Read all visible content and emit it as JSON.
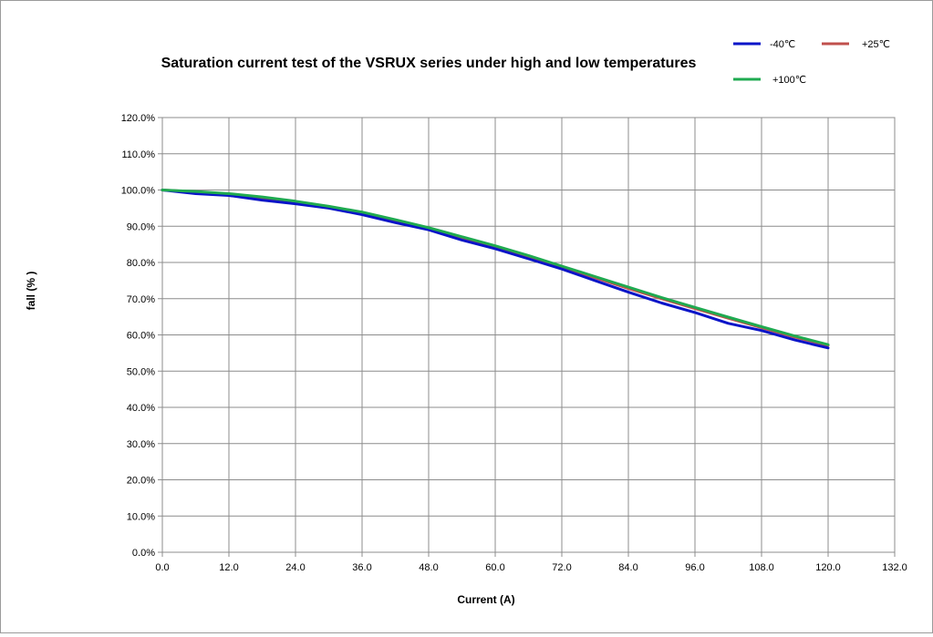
{
  "chart_data": {
    "type": "line",
    "title": "Saturation current test of the VSRUX series under high and low temperatures",
    "xlabel": "Current  (A)",
    "ylabel": "fall (% )",
    "xlim": [
      0,
      132
    ],
    "ylim": [
      0,
      120
    ],
    "x_ticks": [
      0,
      12,
      24,
      36,
      48,
      60,
      72,
      84,
      96,
      108,
      120,
      132
    ],
    "x_tick_labels": [
      "0.0",
      "12.0",
      "24.0",
      "36.0",
      "48.0",
      "60.0",
      "72.0",
      "84.0",
      "96.0",
      "108.0",
      "120.0",
      "132.0"
    ],
    "y_ticks": [
      0,
      10,
      20,
      30,
      40,
      50,
      60,
      70,
      80,
      90,
      100,
      110,
      120
    ],
    "y_tick_labels": [
      "0.0%",
      "10.0%",
      "20.0%",
      "30.0%",
      "40.0%",
      "50.0%",
      "60.0%",
      "70.0%",
      "80.0%",
      "90.0%",
      "100.0%",
      "110.0%",
      "120.0%"
    ],
    "grid": true,
    "legend_position": "top-right",
    "x": [
      0,
      6,
      12,
      18,
      24,
      30,
      36,
      42,
      48,
      54,
      60,
      66,
      72,
      78,
      84,
      90,
      96,
      102,
      108,
      114,
      120
    ],
    "series": [
      {
        "name": "-40℃",
        "color": "#0a14c8",
        "values": [
          100.0,
          99.0,
          98.5,
          97.2,
          96.2,
          95.0,
          93.2,
          91.0,
          89.0,
          86.2,
          83.8,
          81.0,
          78.2,
          75.0,
          71.8,
          68.8,
          66.2,
          63.2,
          61.2,
          58.6,
          56.4
        ]
      },
      {
        "name": "+25℃",
        "color": "#c0504d",
        "values": [
          100.0,
          99.5,
          98.8,
          97.8,
          96.7,
          95.3,
          93.7,
          91.6,
          89.5,
          86.9,
          84.4,
          81.6,
          78.8,
          75.8,
          72.8,
          70.0,
          67.3,
          64.6,
          62.0,
          59.4,
          57.1
        ]
      },
      {
        "name": "+100℃",
        "color": "#1faa50",
        "values": [
          100.0,
          99.6,
          99.0,
          98.1,
          96.9,
          95.5,
          93.9,
          91.8,
          89.6,
          87.1,
          84.6,
          81.9,
          79.0,
          76.1,
          73.2,
          70.3,
          67.6,
          64.9,
          62.3,
          59.7,
          57.3
        ]
      }
    ]
  }
}
